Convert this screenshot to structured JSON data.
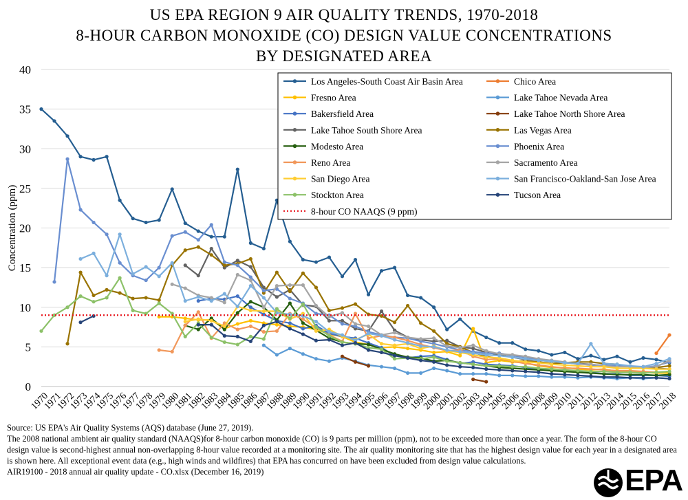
{
  "chart_data": {
    "type": "line",
    "title": [
      "US EPA REGION 9 AIR QUALITY TRENDS, 1970-2018",
      "8-HOUR CARBON MONOXIDE (CO) DESIGN VALUE CONCENTRATIONS",
      "BY DESIGNATED AREA"
    ],
    "xlabel": "",
    "ylabel": "Concentration (ppm)",
    "ylim": [
      0,
      40
    ],
    "yticks": [
      "0",
      "5",
      "10",
      "15",
      "20",
      "25",
      "30",
      "35",
      "40"
    ],
    "categories": [
      "1970",
      "1971",
      "1972",
      "1973",
      "1974",
      "1975",
      "1976",
      "1977",
      "1978",
      "1979",
      "1980",
      "1981",
      "1982",
      "1983",
      "1984",
      "1985",
      "1986",
      "1987",
      "1988",
      "1989",
      "1990",
      "1991",
      "1992",
      "1993",
      "1994",
      "1995",
      "1996",
      "1997",
      "1998",
      "1999",
      "2000",
      "2001",
      "2002",
      "2003",
      "2004",
      "2005",
      "2006",
      "2007",
      "2008",
      "2009",
      "2010",
      "2011",
      "2012",
      "2013",
      "2014",
      "2015",
      "2016",
      "2017",
      "2018"
    ],
    "naaqs": {
      "name": "8-hour CO NAAQS (9 ppm)",
      "value": 9,
      "color": "#e8141b"
    },
    "series": [
      {
        "name": "Los Angeles-South Coast Air Basin Area",
        "color": "#255e91",
        "values": [
          35,
          33.5,
          31.6,
          29,
          28.6,
          29,
          23.5,
          21.2,
          20.7,
          21,
          24.9,
          20.6,
          19.6,
          18.9,
          18.9,
          27.4,
          18.1,
          17.4,
          23.5,
          18.3,
          16,
          15.7,
          16.3,
          13.9,
          16,
          11.6,
          14.6,
          15,
          11.5,
          11.2,
          10,
          7.2,
          8.5,
          7,
          6.2,
          5.5,
          5.5,
          4.7,
          4.5,
          4,
          4.3,
          3.5,
          3.9,
          3.4,
          3.8,
          3.1,
          3.6,
          3.4,
          3
        ]
      },
      {
        "name": "Chico Area",
        "color": "#ed7d31",
        "values": [
          null,
          null,
          null,
          null,
          null,
          null,
          null,
          null,
          null,
          null,
          null,
          null,
          null,
          null,
          null,
          null,
          null,
          null,
          null,
          null,
          null,
          null,
          null,
          null,
          null,
          null,
          null,
          null,
          null,
          null,
          null,
          null,
          null,
          null,
          null,
          null,
          null,
          null,
          null,
          null,
          null,
          null,
          null,
          null,
          null,
          null,
          null,
          4.2,
          6.5
        ]
      },
      {
        "name": "Fresno Area",
        "color": "#ffc000",
        "values": [
          null,
          null,
          null,
          null,
          null,
          null,
          null,
          null,
          null,
          8.8,
          8.8,
          8.6,
          8.4,
          8.4,
          7.3,
          7.9,
          8.3,
          8,
          7.8,
          7.6,
          7.5,
          7.2,
          6.6,
          6.3,
          5.6,
          5.3,
          4.9,
          5,
          4.8,
          4.6,
          4.3,
          4.4,
          3.9,
          7.3,
          3,
          3.3,
          3.1,
          3,
          2.6,
          2.4,
          2.4,
          2.2,
          2.1,
          2.2,
          1.9,
          1.8,
          1.8,
          1.7,
          1.7
        ]
      },
      {
        "name": "Lake Tahoe Nevada Area",
        "color": "#5b9bd5",
        "values": [
          null,
          null,
          null,
          null,
          null,
          null,
          null,
          null,
          null,
          null,
          null,
          null,
          null,
          null,
          null,
          null,
          null,
          5.2,
          4,
          4.8,
          4.1,
          3.5,
          3.2,
          3.6,
          3.2,
          2.7,
          2.5,
          2.3,
          1.7,
          1.7,
          2.3,
          2,
          1.6,
          1.6,
          1.6,
          1.4,
          1.4,
          1.3,
          1.3,
          1.2,
          1.2,
          1.1,
          1.2,
          1.1,
          1,
          1.1,
          1,
          1.1,
          1
        ]
      },
      {
        "name": "Bakersfield Area",
        "color": "#4472c4",
        "values": [
          null,
          null,
          null,
          null,
          null,
          null,
          null,
          null,
          null,
          null,
          null,
          null,
          10.8,
          11.1,
          11,
          11.4,
          10,
          9.1,
          8.3,
          8,
          7.3,
          7.7,
          6.7,
          6.3,
          6.1,
          5.5,
          4.9,
          3.9,
          3.6,
          3.8,
          3.9,
          3.4,
          2.9,
          3.1,
          2.8,
          2.7,
          2.6,
          2.4,
          2.2,
          2.1,
          2,
          1.8,
          1.8,
          1.6,
          1.6,
          1.4,
          1.4,
          1.4,
          1.3
        ]
      },
      {
        "name": "Lake Tahoe North Shore Area",
        "color": "#843c0c",
        "values": [
          null,
          null,
          null,
          null,
          null,
          null,
          null,
          null,
          null,
          null,
          null,
          null,
          null,
          null,
          null,
          null,
          null,
          null,
          null,
          null,
          null,
          null,
          null,
          3.8,
          3.1,
          2.6,
          null,
          null,
          null,
          null,
          null,
          null,
          null,
          0.9,
          0.6,
          null,
          null,
          null,
          null,
          null,
          null,
          null,
          null,
          null,
          null,
          null,
          null,
          null,
          null
        ]
      },
      {
        "name": "Lake Tahoe South Shore Area",
        "color": "#636363",
        "values": [
          null,
          null,
          null,
          null,
          null,
          null,
          null,
          null,
          null,
          null,
          null,
          15.3,
          14,
          17.4,
          15,
          15.9,
          15.1,
          12.5,
          11.3,
          12.2,
          10.3,
          10.1,
          8.3,
          8.3,
          7.3,
          7,
          9.5,
          7.1,
          6.2,
          5.9,
          5.7,
          5.8,
          5,
          4.8,
          4.3,
          4,
          3.7,
          3.4,
          3.3,
          3.2,
          3,
          2.9,
          2.8,
          2.6,
          2.7,
          2.5,
          2.4,
          2.3,
          2.2
        ]
      },
      {
        "name": "Las Vegas Area",
        "color": "#997300",
        "values": [
          null,
          null,
          5.4,
          14.4,
          11.5,
          12.2,
          11.8,
          11.1,
          11.2,
          10.9,
          15.3,
          17.2,
          17.6,
          16.6,
          15.3,
          15.5,
          16.1,
          11.8,
          14.4,
          12,
          14.3,
          12.5,
          9.6,
          9.9,
          10.4,
          9.1,
          8.9,
          8.1,
          10.2,
          8,
          7,
          5.4,
          5,
          4.3,
          3.8,
          3.5,
          3.2,
          3.2,
          3.1,
          2.9,
          3,
          3.1,
          3.1,
          2.9,
          2.8,
          2.5,
          2.5,
          2.4,
          2.6
        ]
      },
      {
        "name": "Modesto Area",
        "color": "#255e0e",
        "values": [
          null,
          null,
          null,
          null,
          null,
          null,
          null,
          null,
          null,
          null,
          null,
          7.7,
          7.2,
          8.6,
          7.2,
          9.3,
          10.7,
          10,
          8.4,
          10.5,
          8,
          7.1,
          6.1,
          5.6,
          5.4,
          5.3,
          4.7,
          4.1,
          3.7,
          3.6,
          3.2,
          3.3,
          3,
          2.8,
          2.6,
          2.4,
          2.3,
          2.2,
          2.1,
          2,
          1.9,
          1.8,
          1.7,
          1.6,
          1.5,
          1.5,
          1.5,
          1.4,
          1.5
        ]
      },
      {
        "name": "Phoenix Area",
        "color": "#698ed0",
        "values": [
          null,
          13.2,
          28.7,
          22.3,
          20.7,
          19.2,
          15.6,
          14,
          13.4,
          15,
          19,
          19.5,
          18.5,
          20.4,
          15.7,
          15.3,
          13.8,
          12.1,
          12.3,
          11.1,
          10.5,
          9.2,
          9,
          7.9,
          7.6,
          6.9,
          6.5,
          6.2,
          6.1,
          5.7,
          5.4,
          5,
          4.6,
          4.4,
          4.2,
          4.2,
          3.9,
          3.7,
          3.4,
          3.2,
          3,
          2.9,
          2.7,
          2.7,
          2.6,
          2.5,
          2.4,
          2.6,
          3.1
        ]
      },
      {
        "name": "Reno Area",
        "color": "#f1975a",
        "values": [
          null,
          null,
          null,
          null,
          null,
          null,
          null,
          null,
          null,
          4.6,
          4.4,
          7.7,
          9.4,
          6.1,
          8,
          7.2,
          7.6,
          6.9,
          7,
          9.2,
          8.5,
          7.4,
          6.5,
          5.7,
          9.2,
          6.1,
          6.4,
          6.2,
          5.8,
          5.3,
          4.9,
          4.5,
          4.6,
          3.8,
          3.4,
          3.5,
          3.2,
          2.9,
          2.7,
          2.5,
          2.3,
          2.3,
          2.2,
          2.1,
          2,
          2,
          1.9,
          1.8,
          1.9
        ]
      },
      {
        "name": "Sacramento Area",
        "color": "#a5a5a5",
        "values": [
          null,
          null,
          null,
          null,
          null,
          null,
          null,
          null,
          null,
          null,
          12.9,
          12.4,
          11.5,
          11.2,
          10.6,
          14.1,
          13.4,
          10,
          12.7,
          12.8,
          12.8,
          10.2,
          8.8,
          9.3,
          7.9,
          7.6,
          6.5,
          6.8,
          6.2,
          6,
          6.1,
          5.1,
          4.9,
          5.2,
          4.5,
          4.1,
          4,
          3.8,
          3.5,
          3.3,
          3.1,
          2.8,
          2.8,
          2.6,
          2.5,
          2.5,
          2.4,
          2.5,
          3.3
        ]
      },
      {
        "name": "San Diego Area",
        "color": "#ffcd33",
        "values": [
          null,
          null,
          null,
          null,
          null,
          null,
          null,
          null,
          null,
          null,
          null,
          8.2,
          8.5,
          8.3,
          7.6,
          10.1,
          9.6,
          9.5,
          9.5,
          8.5,
          9.2,
          7,
          7.2,
          6.3,
          5.9,
          6.6,
          5.4,
          5.2,
          5.4,
          4.8,
          5.1,
          4.5,
          4.3,
          4,
          3.7,
          3.6,
          3.3,
          3.1,
          3,
          2.8,
          2.7,
          2.6,
          2.5,
          2.5,
          2.3,
          2.3,
          2.3,
          2.2,
          2.2
        ]
      },
      {
        "name": "San Francisco-Oakland-San Jose Area",
        "color": "#7cafdd",
        "values": [
          null,
          null,
          null,
          16.1,
          16.8,
          14,
          19.2,
          14.2,
          15.1,
          13.9,
          15.6,
          10.8,
          11.3,
          10.8,
          11.7,
          10.1,
          12.7,
          11.2,
          9.3,
          9.1,
          8.9,
          8.2,
          6.9,
          6.5,
          5.8,
          6.7,
          6.4,
          5.9,
          5.5,
          5.1,
          5,
          4.6,
          4.4,
          4.2,
          4,
          3.9,
          3.7,
          3.5,
          3.3,
          3.2,
          3,
          2.9,
          5.4,
          2.9,
          2.8,
          2.6,
          2.5,
          2.9,
          3.5
        ]
      },
      {
        "name": "Stockton Area",
        "color": "#8cc168",
        "values": [
          7,
          9,
          10,
          11.4,
          10.7,
          11.2,
          13.7,
          9.6,
          9.2,
          10.5,
          9.2,
          6.3,
          8,
          6.2,
          5.6,
          5.3,
          6.3,
          6,
          9.8,
          8.6,
          10.4,
          7.5,
          6.4,
          5.6,
          5.4,
          4.9,
          4.7,
          3.5,
          3.6,
          3.5,
          3.7,
          3.2,
          3,
          2.8,
          2.6,
          2.6,
          2.5,
          2.5,
          2.3,
          2.2,
          2.1,
          2,
          1.9,
          1.9,
          1.8,
          1.8,
          1.7,
          1.8,
          1.9
        ]
      },
      {
        "name": "Tucson Area",
        "color": "#264478",
        "values": [
          null,
          null,
          null,
          8.1,
          8.9,
          null,
          null,
          null,
          null,
          null,
          null,
          null,
          7.8,
          7.8,
          6.4,
          6.3,
          5.7,
          7.7,
          8.2,
          7.3,
          6.6,
          5.8,
          5.9,
          5.2,
          5.5,
          4.6,
          4.3,
          3.9,
          3.6,
          3.3,
          3.1,
          2.7,
          2.5,
          2.4,
          2.2,
          2.1,
          2,
          1.9,
          1.8,
          1.6,
          1.5,
          1.4,
          1.3,
          1.2,
          1.2,
          1.1,
          1.1,
          1.1,
          1
        ]
      }
    ]
  },
  "footer": {
    "lines": [
      "Source: US EPA's Air Quality Systems (AQS) database (June 27, 2019).",
      "The 2008 national ambient air quality standard (NAAQS)for 8-hour carbon monoxide (CO) is 9 parts per million (ppm), not to be exceeded more than once a year. The form of the 8-hour CO design value is second-highest annual non-overlapping 8-hour value recorded at a monitoring site. The air quality monitoring site that has the highest design value for each year in a designated area is shown here. All exceptional event data (e.g., high winds and wildfires) that EPA has concurred on have been excluded from design value calculations.",
      "AIR19100 - 2018 annual air quality update - CO.xlsx (December 16, 2019)"
    ]
  },
  "logo": {
    "text": "EPA"
  }
}
